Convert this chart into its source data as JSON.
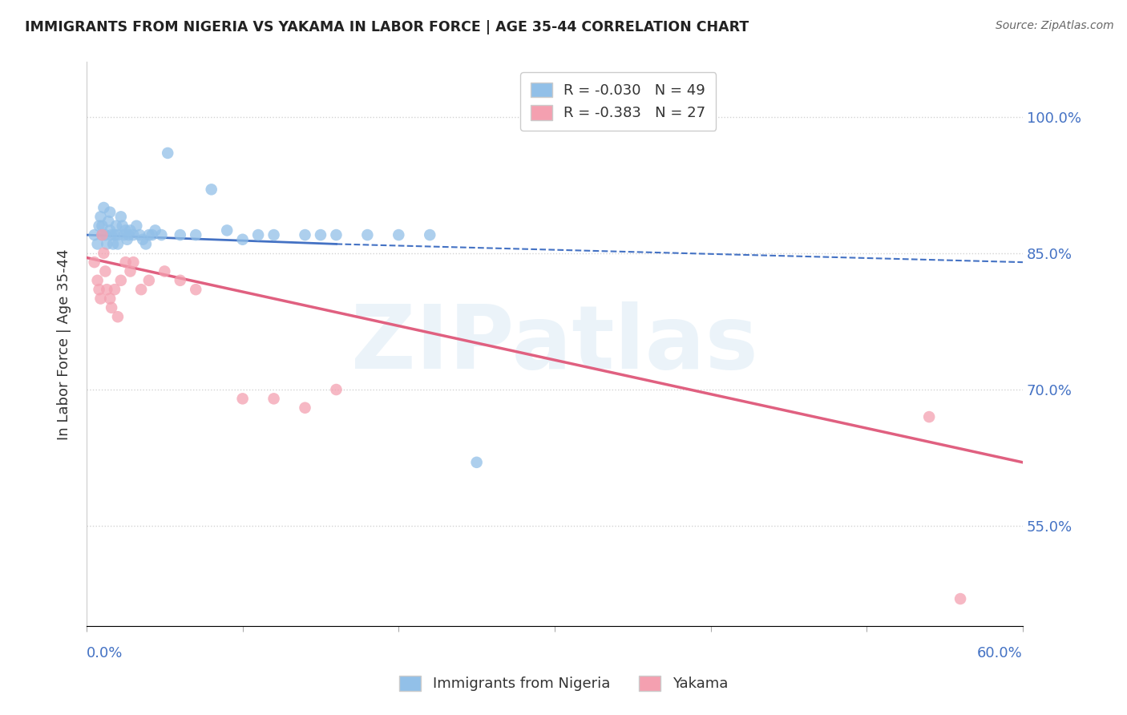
{
  "title": "IMMIGRANTS FROM NIGERIA VS YAKAMA IN LABOR FORCE | AGE 35-44 CORRELATION CHART",
  "source": "Source: ZipAtlas.com",
  "ylabel": "In Labor Force | Age 35-44",
  "ytick_labels": [
    "55.0%",
    "70.0%",
    "85.0%",
    "100.0%"
  ],
  "ytick_values": [
    0.55,
    0.7,
    0.85,
    1.0
  ],
  "xlim": [
    0.0,
    0.6
  ],
  "ylim": [
    0.44,
    1.06
  ],
  "nigeria_R": -0.03,
  "nigeria_N": 49,
  "yakama_R": -0.383,
  "yakama_N": 27,
  "nigeria_color": "#92c0e8",
  "yakama_color": "#f4a0b0",
  "nigeria_trendline_color": "#4472c4",
  "yakama_trendline_color": "#e06080",
  "legend_nigeria": "Immigrants from Nigeria",
  "legend_yakama": "Yakama",
  "watermark_text": "ZIPatlas",
  "nigeria_x": [
    0.005,
    0.007,
    0.008,
    0.009,
    0.01,
    0.01,
    0.011,
    0.012,
    0.013,
    0.014,
    0.015,
    0.015,
    0.016,
    0.017,
    0.018,
    0.019,
    0.02,
    0.02,
    0.022,
    0.023,
    0.024,
    0.025,
    0.026,
    0.027,
    0.028,
    0.03,
    0.032,
    0.034,
    0.036,
    0.038,
    0.04,
    0.042,
    0.044,
    0.048,
    0.052,
    0.06,
    0.07,
    0.08,
    0.09,
    0.1,
    0.11,
    0.12,
    0.14,
    0.15,
    0.16,
    0.18,
    0.2,
    0.22,
    0.25
  ],
  "nigeria_y": [
    0.87,
    0.86,
    0.88,
    0.89,
    0.87,
    0.88,
    0.9,
    0.87,
    0.86,
    0.885,
    0.875,
    0.895,
    0.87,
    0.86,
    0.87,
    0.88,
    0.87,
    0.86,
    0.89,
    0.88,
    0.87,
    0.875,
    0.865,
    0.87,
    0.875,
    0.87,
    0.88,
    0.87,
    0.865,
    0.86,
    0.87,
    0.87,
    0.875,
    0.87,
    0.96,
    0.87,
    0.87,
    0.92,
    0.875,
    0.865,
    0.87,
    0.87,
    0.87,
    0.87,
    0.87,
    0.87,
    0.87,
    0.87,
    0.62
  ],
  "yakama_x": [
    0.005,
    0.007,
    0.008,
    0.009,
    0.01,
    0.011,
    0.012,
    0.013,
    0.015,
    0.016,
    0.018,
    0.02,
    0.022,
    0.025,
    0.028,
    0.03,
    0.035,
    0.04,
    0.05,
    0.06,
    0.07,
    0.1,
    0.12,
    0.14,
    0.16,
    0.54,
    0.56
  ],
  "yakama_y": [
    0.84,
    0.82,
    0.81,
    0.8,
    0.87,
    0.85,
    0.83,
    0.81,
    0.8,
    0.79,
    0.81,
    0.78,
    0.82,
    0.84,
    0.83,
    0.84,
    0.81,
    0.82,
    0.83,
    0.82,
    0.81,
    0.69,
    0.69,
    0.68,
    0.7,
    0.67,
    0.47
  ],
  "nigeria_trend_x": [
    0.0,
    0.16,
    0.6
  ],
  "nigeria_trend_y": [
    0.87,
    0.86,
    0.84
  ],
  "nigeria_trend_solid_end": 0.16,
  "yakama_trend_x": [
    0.0,
    0.6
  ],
  "yakama_trend_y": [
    0.845,
    0.62
  ]
}
